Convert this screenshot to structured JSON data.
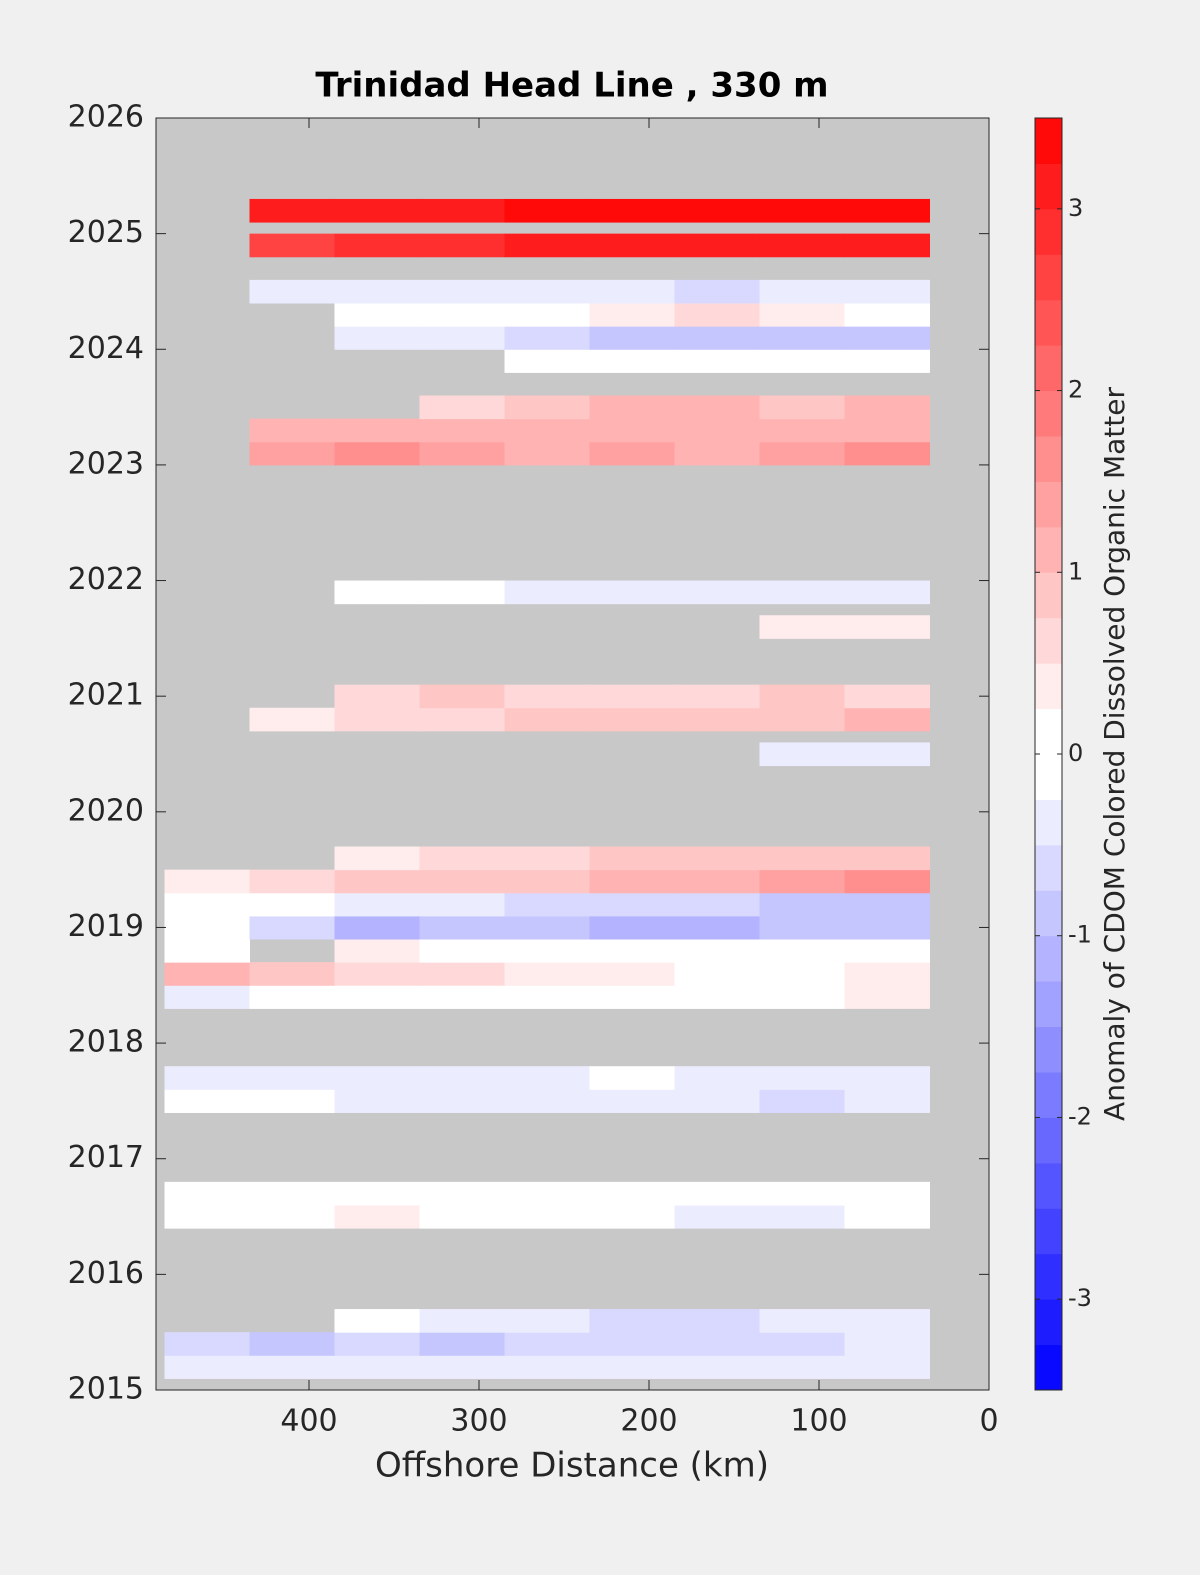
{
  "chart_data": {
    "type": "contour",
    "title": "Trinidad Head Line , 330 m",
    "xlabel": "Offshore Distance (km)",
    "colorbar_label": "Anomaly of CDOM Colored Dissolved Organic Matter",
    "xlim": [
      490,
      0
    ],
    "xticks": [
      400,
      300,
      200,
      100,
      0
    ],
    "ylim": [
      2015,
      2026
    ],
    "yticks": [
      2015,
      2016,
      2017,
      2018,
      2019,
      2020,
      2021,
      2022,
      2023,
      2024,
      2025,
      2026
    ],
    "clim": [
      -3.5,
      3.5
    ],
    "cticks": [
      -3,
      -2,
      -1,
      0,
      1,
      2,
      3
    ],
    "clevel": 0.25,
    "missing_color": "#c8c8c8",
    "x": [
      460,
      410,
      360,
      310,
      260,
      210,
      160,
      110,
      60
    ],
    "y": [
      2015.2,
      2015.4,
      2015.6,
      2016.5,
      2016.7,
      2017.5,
      2017.7,
      2018.4,
      2018.6,
      2018.8,
      2019.0,
      2019.2,
      2019.4,
      2019.6,
      2020.5,
      2020.8,
      2021.0,
      2021.6,
      2021.9,
      2023.1,
      2023.3,
      2023.5,
      2023.9,
      2024.1,
      2024.3,
      2024.5,
      2024.9,
      2025.2
    ],
    "z": [
      [
        -0.3,
        -0.5,
        -0.5,
        -0.3,
        -0.4,
        -0.5,
        -0.4,
        -0.5,
        -0.5
      ],
      [
        -0.6,
        -0.8,
        -0.7,
        -0.9,
        -0.7,
        -0.7,
        -0.6,
        -0.6,
        -0.5
      ],
      [
        null,
        null,
        -0.2,
        -0.3,
        -0.5,
        -0.6,
        -0.6,
        -0.4,
        -0.4
      ],
      [
        0.1,
        0.1,
        0.4,
        0.1,
        -0.1,
        -0.2,
        -0.3,
        -0.3,
        -0.2
      ],
      [
        0.0,
        0.0,
        0.0,
        0.0,
        0.0,
        0.0,
        -0.1,
        -0.1,
        0.0
      ],
      [
        0.1,
        0.0,
        -0.3,
        -0.5,
        -0.4,
        -0.5,
        -0.5,
        -0.6,
        -0.5
      ],
      [
        -0.3,
        -0.3,
        -0.3,
        -0.3,
        -0.3,
        -0.2,
        -0.4,
        -0.4,
        -0.3
      ],
      [
        -0.3,
        0.0,
        0.1,
        0.1,
        0.2,
        0.0,
        0.0,
        0.1,
        0.3
      ],
      [
        1.0,
        0.8,
        0.6,
        0.5,
        0.4,
        0.3,
        0.1,
        0.2,
        0.4
      ],
      [
        0.1,
        null,
        0.3,
        0.1,
        0.0,
        0.0,
        0.1,
        -0.1,
        0.0
      ],
      [
        -0.1,
        -0.7,
        -1.2,
        -1.0,
        -1.0,
        -1.1,
        -1.1,
        -1.0,
        -0.9
      ],
      [
        0.0,
        -0.2,
        -0.4,
        -0.5,
        -0.6,
        -0.6,
        -0.7,
        -0.8,
        -1.0
      ],
      [
        0.3,
        0.6,
        0.8,
        0.9,
        0.9,
        1.0,
        1.2,
        1.3,
        1.5
      ],
      [
        null,
        null,
        0.3,
        0.7,
        0.7,
        0.8,
        0.8,
        0.8,
        0.9
      ],
      [
        null,
        null,
        null,
        null,
        null,
        null,
        null,
        -0.4,
        -0.4
      ],
      [
        null,
        0.3,
        0.5,
        0.6,
        0.8,
        0.9,
        0.9,
        0.8,
        1.0
      ],
      [
        null,
        null,
        0.6,
        0.9,
        0.6,
        0.7,
        0.6,
        0.8,
        0.7
      ],
      [
        null,
        null,
        null,
        null,
        null,
        null,
        null,
        0.4,
        0.4
      ],
      [
        null,
        null,
        0.0,
        -0.2,
        -0.5,
        -0.5,
        -0.4,
        -0.3,
        -0.3
      ],
      [
        null,
        1.3,
        1.5,
        1.3,
        1.2,
        1.3,
        1.2,
        1.4,
        1.6
      ],
      [
        null,
        1.0,
        1.1,
        1.0,
        1.1,
        1.2,
        1.0,
        1.0,
        1.1
      ],
      [
        null,
        null,
        null,
        0.7,
        0.9,
        1.0,
        1.1,
        0.9,
        1.0
      ],
      [
        null,
        null,
        null,
        null,
        0.0,
        0.2,
        0.2,
        0.0,
        0.0
      ],
      [
        null,
        null,
        -0.3,
        -0.3,
        -0.6,
        -0.8,
        -0.8,
        -0.9,
        -1.0
      ],
      [
        null,
        null,
        0.0,
        0.2,
        0.0,
        0.3,
        0.5,
        0.3,
        0.2
      ],
      [
        null,
        -0.5,
        -0.3,
        -0.4,
        -0.5,
        -0.5,
        -0.6,
        -0.5,
        -0.5
      ],
      [
        null,
        2.6,
        2.8,
        2.9,
        3.0,
        3.1,
        3.1,
        3.2,
        3.2
      ],
      [
        null,
        3.1,
        3.2,
        3.2,
        3.3,
        3.3,
        3.3,
        3.3,
        3.4
      ]
    ]
  }
}
